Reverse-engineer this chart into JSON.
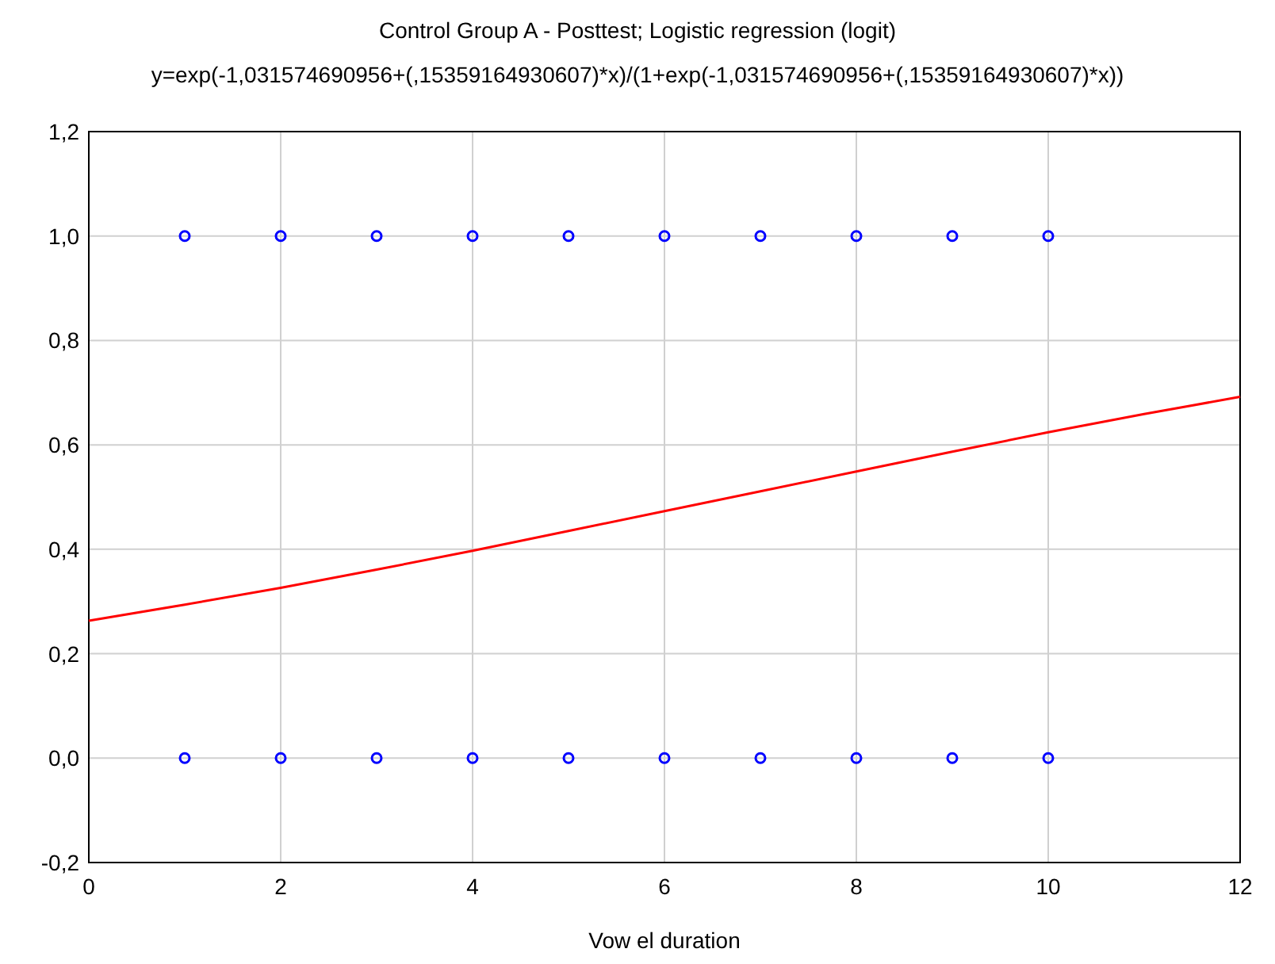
{
  "chart_data": {
    "type": "scatter",
    "title": "Control Group A - Posttest; Logistic regression (logit)",
    "subtitle": "y=exp(-1,031574690956+(,15359164930607)*x)/(1+exp(-1,031574690956+(,15359164930607)*x))",
    "xlabel": "Vow el duration",
    "xlim": [
      0,
      12
    ],
    "xticks": [
      0,
      2,
      4,
      6,
      8,
      10,
      12
    ],
    "ylim": [
      -0.2,
      1.2
    ],
    "yticks": [
      {
        "value": -0.2,
        "label": "-0,2"
      },
      {
        "value": 0,
        "label": "0,0"
      },
      {
        "value": 0.2,
        "label": "0,2"
      },
      {
        "value": 0.4,
        "label": "0,4"
      },
      {
        "value": 0.6,
        "label": "0,6"
      },
      {
        "value": 0.8,
        "label": "0,8"
      },
      {
        "value": 1,
        "label": "1,0"
      },
      {
        "value": 1.2,
        "label": "1,2"
      }
    ],
    "grid": true,
    "series": [
      {
        "marker": "circle",
        "color": "#0000ff",
        "x": [
          1,
          2,
          3,
          4,
          5,
          6,
          7,
          8,
          9,
          10,
          1,
          2,
          3,
          4,
          5,
          6,
          7,
          8,
          9,
          10
        ],
        "values": [
          1,
          1,
          1,
          1,
          1,
          1,
          1,
          1,
          1,
          1,
          0,
          0,
          0,
          0,
          0,
          0,
          0,
          0,
          0,
          0
        ]
      },
      {
        "type": "line",
        "marker": "none",
        "color": "#ff0000",
        "line_style": "solid",
        "x": [
          0,
          1,
          2,
          3,
          4,
          5,
          6,
          7,
          8,
          9,
          10,
          11,
          12
        ],
        "values": [
          0.263,
          0.294,
          0.326,
          0.361,
          0.397,
          0.435,
          0.473,
          0.511,
          0.549,
          0.587,
          0.624,
          0.659,
          0.692
        ]
      }
    ]
  }
}
